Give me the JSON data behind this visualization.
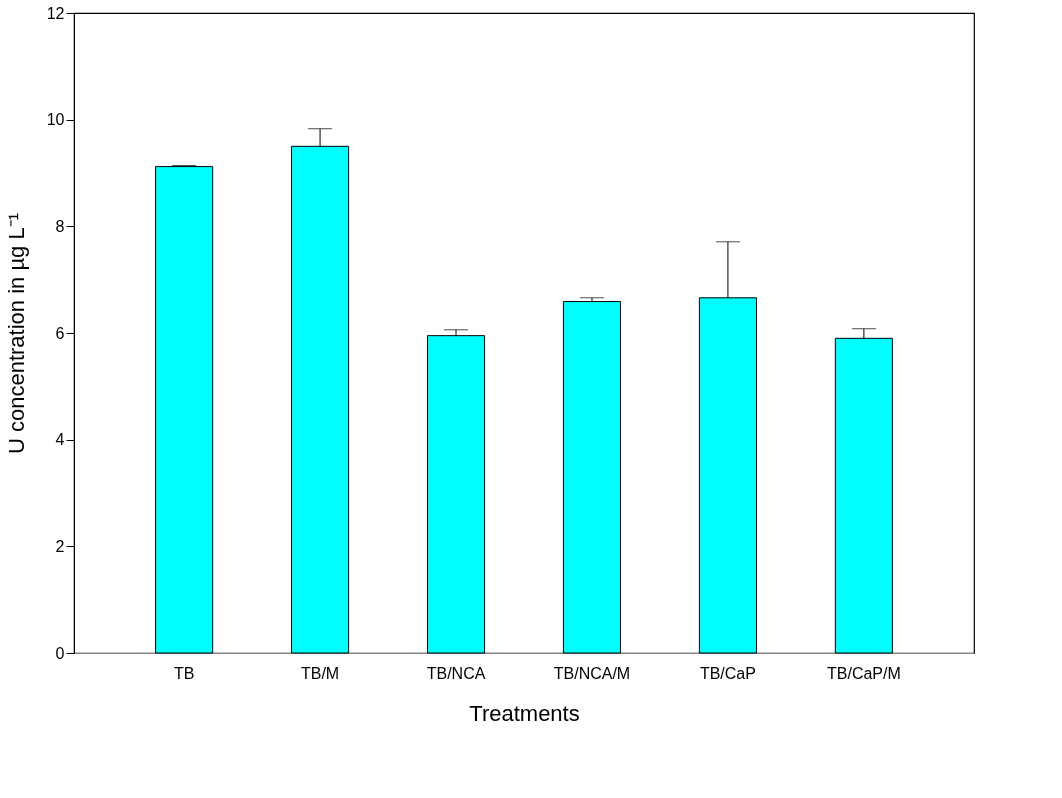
{
  "chart_data": {
    "type": "bar",
    "xlabel": "Treatments",
    "ylabel": "U concentration in µg L⁻¹",
    "categories": [
      "TB",
      "TB/M",
      "TB/NCA",
      "TB/NCA/M",
      "TB/CaP",
      "TB/CaP/M"
    ],
    "values": [
      9.12,
      9.5,
      5.95,
      6.59,
      6.66,
      5.9
    ],
    "errors": [
      [
        9.12,
        9.14
      ],
      [
        9.5,
        9.83
      ],
      [
        5.95,
        6.06
      ],
      [
        6.59,
        6.66
      ],
      [
        6.66,
        7.71
      ],
      [
        5.9,
        6.08
      ]
    ],
    "color": "#00ffff",
    "ylim": [
      0,
      12
    ],
    "yticks": [
      0,
      2,
      4,
      6,
      8,
      10,
      12
    ],
    "grid": false
  }
}
